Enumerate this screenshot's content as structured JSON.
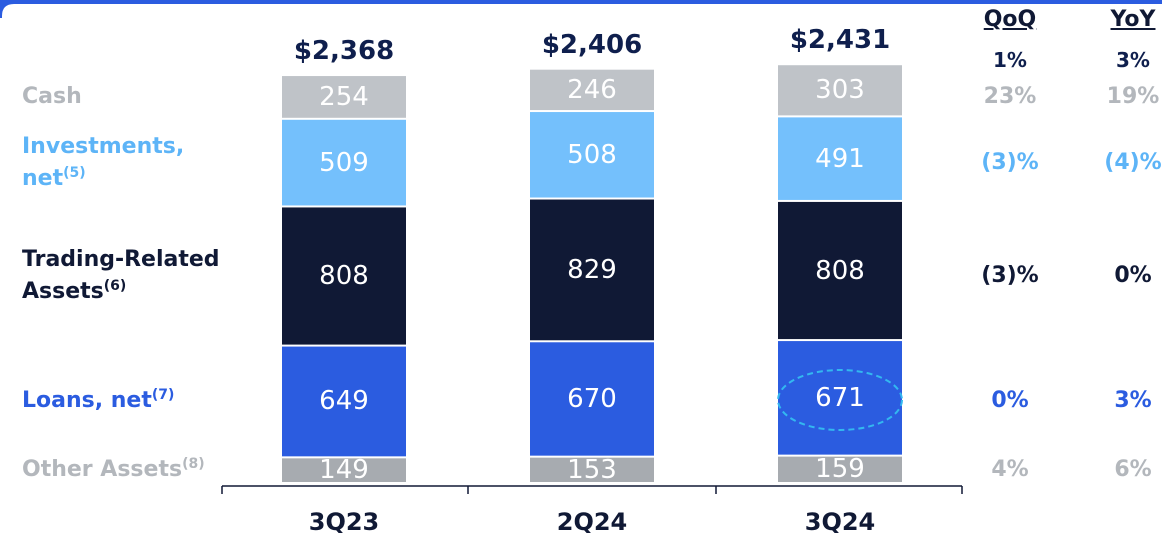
{
  "chart_data": {
    "type": "stacked_bar",
    "categories": [
      "3Q23",
      "2Q24",
      "3Q24"
    ],
    "totals": {
      "values": [
        2368,
        2406,
        2431
      ],
      "value_labels": [
        "$2,368",
        "$2,406",
        "$2,431"
      ]
    },
    "series": [
      {
        "name": "Other Assets",
        "note": "(8)",
        "color": "#a7abb0",
        "label_color": "#b3b7bc",
        "values": [
          149,
          153,
          159
        ]
      },
      {
        "name": "Loans, net",
        "note": "(7)",
        "color": "#2b5ce0",
        "label_color": "#2b5ce0",
        "values": [
          649,
          670,
          671
        ]
      },
      {
        "name": "Trading-Related Assets",
        "note": "(6)",
        "color": "#101935",
        "label_color": "#101935",
        "values": [
          808,
          829,
          808
        ]
      },
      {
        "name": "Investments, net",
        "note": "(5)",
        "color": "#74c0fc",
        "label_color": "#5db4f7",
        "values": [
          509,
          508,
          491
        ]
      },
      {
        "name": "Cash",
        "note": null,
        "color": "#bfc3c8",
        "label_color": "#b3b7bc",
        "values": [
          254,
          246,
          303
        ]
      }
    ],
    "changes": [
      {
        "name": "QoQ",
        "total": 1,
        "total_label": "1%",
        "values": [
          4,
          0,
          -3,
          -3,
          23
        ],
        "value_labels": [
          "4%",
          "0%",
          "(3)%",
          "(3)%",
          "23%"
        ]
      },
      {
        "name": "YoY",
        "total": 3,
        "total_label": "3%",
        "values": [
          6,
          3,
          0,
          -4,
          19
        ],
        "value_labels": [
          "6%",
          "3%",
          "0%",
          "(4)%",
          "19%"
        ]
      }
    ]
  }
}
